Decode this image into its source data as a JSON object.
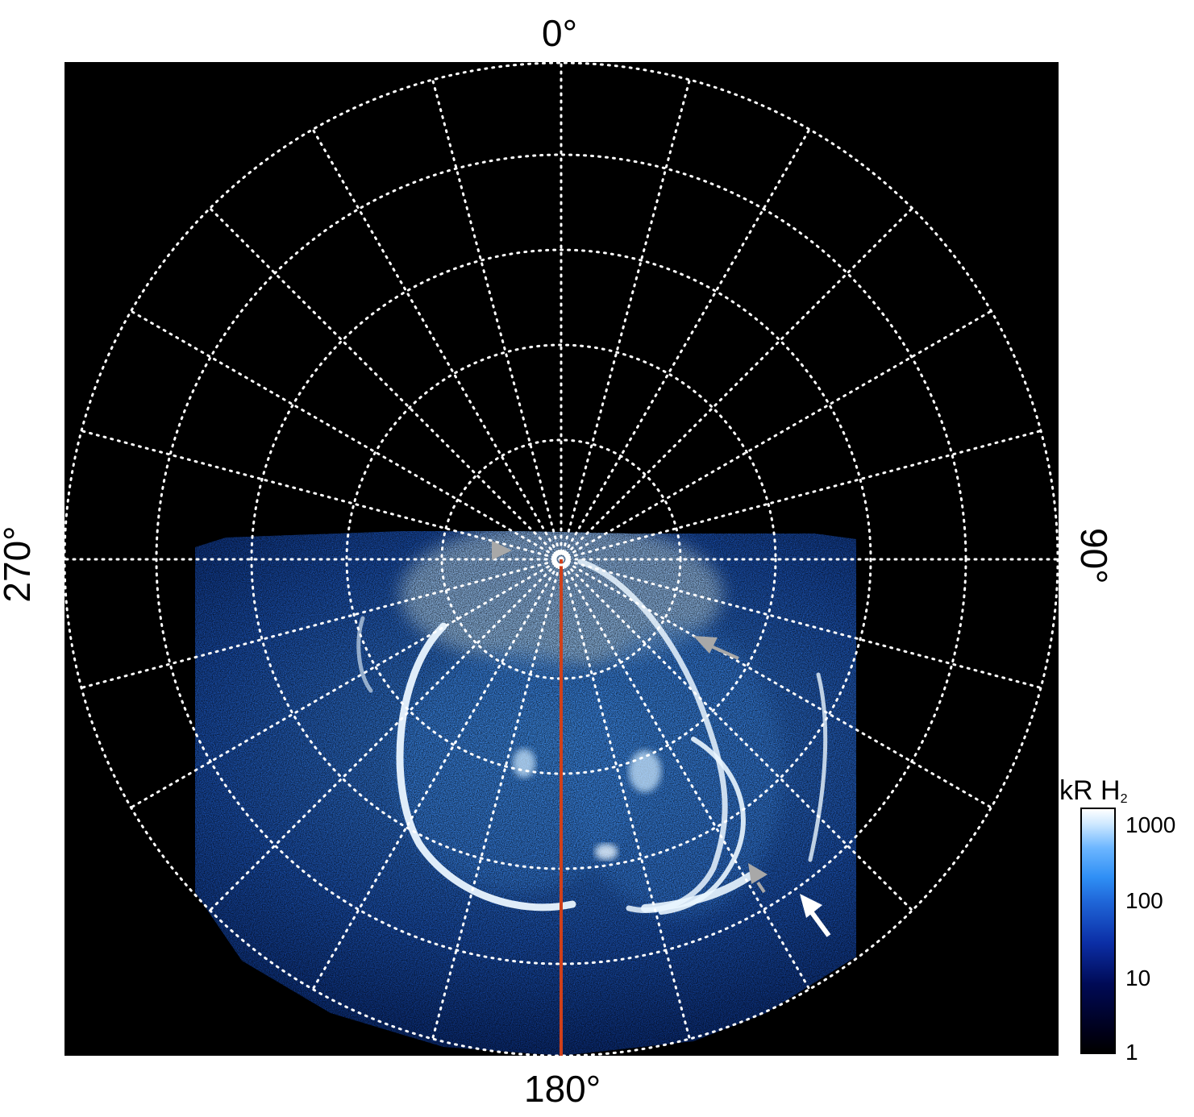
{
  "labels": {
    "top": "0°",
    "bottom": "180°",
    "left": "270°",
    "right": "90°"
  },
  "colorbar": {
    "title": "kR H",
    "subscript": "2",
    "ticks": [
      "1000",
      "100",
      "10",
      "1"
    ]
  },
  "colors": {
    "background": "#000000",
    "grid": "#ffffff",
    "meridian": "#d0401a",
    "arrow_gray": "#a8a8a8",
    "arrow_white": "#ffffff"
  }
}
